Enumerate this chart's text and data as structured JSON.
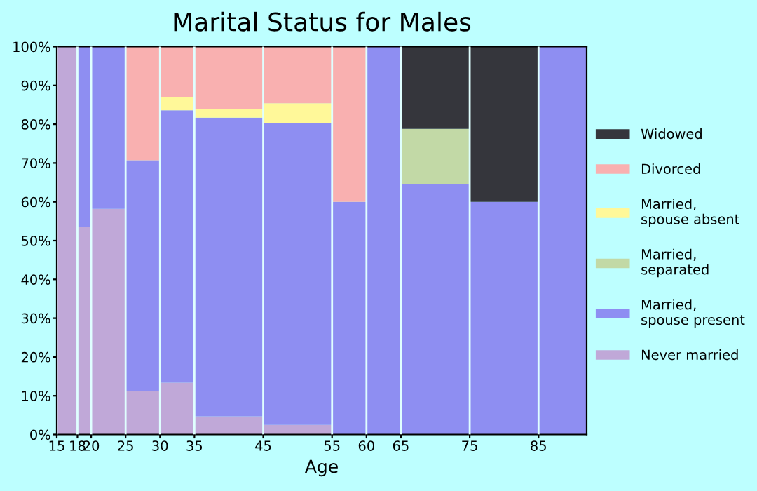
{
  "chart_data": {
    "type": "bar",
    "stacked": true,
    "title": "Marital Status for Males",
    "xlabel": "Age",
    "x": [
      16.5,
      19,
      22.5,
      27.5,
      32.5,
      40,
      50,
      57.5,
      62.5,
      70,
      80,
      88.5
    ],
    "series": [
      {
        "name": "Never married",
        "color": "#c0a8d8",
        "values": [
          100,
          53.5,
          58.2,
          11.2,
          13.4,
          4.7,
          2.5,
          null,
          null,
          null,
          null,
          null
        ]
      },
      {
        "name": "Married,\nspouse present",
        "color": "#8e8ef2",
        "values": [
          null,
          46.5,
          41.8,
          59.5,
          70.2,
          77.0,
          77.7,
          60,
          100,
          64.5,
          60,
          100
        ]
      },
      {
        "name": "Married,\nseparated",
        "color": "#c2d9a6",
        "values": [
          null,
          null,
          null,
          null,
          null,
          null,
          null,
          null,
          null,
          14.3,
          null,
          null
        ]
      },
      {
        "name": "Married,\nspouse absent",
        "color": "#fff899",
        "values": [
          null,
          null,
          null,
          null,
          3.3,
          2.2,
          5.2,
          null,
          null,
          null,
          null,
          null
        ]
      },
      {
        "name": "Divorced",
        "color": "#f9b0b0",
        "values": [
          null,
          null,
          null,
          29.3,
          13.1,
          16.0,
          14.5,
          40,
          null,
          null,
          null,
          null
        ]
      },
      {
        "name": "Widowed",
        "color": "#35363c",
        "values": [
          null,
          null,
          null,
          null,
          null,
          null,
          null,
          null,
          null,
          21.2,
          40,
          null
        ]
      }
    ],
    "xlim": [
      15,
      92
    ],
    "xticks": [
      15,
      18,
      20,
      25,
      30,
      35,
      45,
      55,
      60,
      65,
      75,
      85
    ],
    "ylim": [
      0,
      100
    ],
    "yticks": [
      {
        "value": 0,
        "label": "0%"
      },
      {
        "value": 10,
        "label": "10%"
      },
      {
        "value": 20,
        "label": "20%"
      },
      {
        "value": 30,
        "label": "30%"
      },
      {
        "value": 40,
        "label": "40%"
      },
      {
        "value": 50,
        "label": "50%"
      },
      {
        "value": 60,
        "label": "60%"
      },
      {
        "value": 70,
        "label": "70%"
      },
      {
        "value": 80,
        "label": "80%"
      },
      {
        "value": 90,
        "label": "90%"
      },
      {
        "value": 100,
        "label": "100%"
      }
    ],
    "grid": "x",
    "legend": "right"
  }
}
